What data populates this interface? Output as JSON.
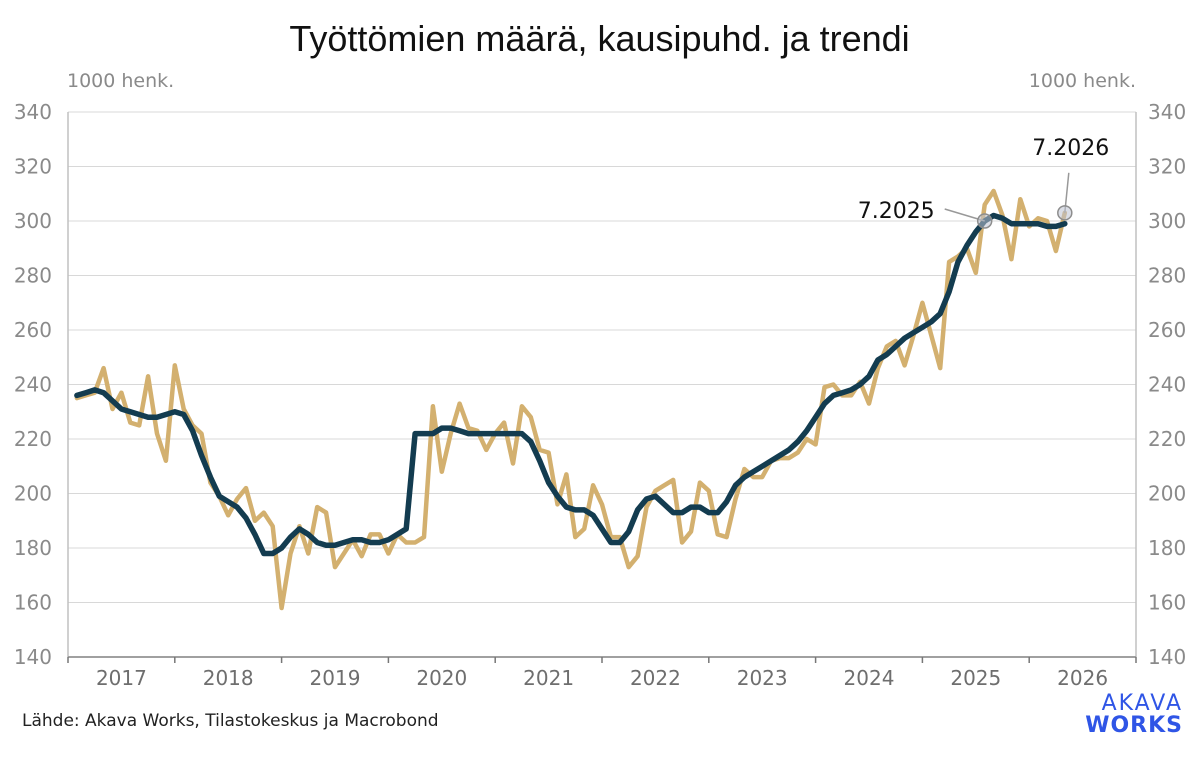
{
  "colors": {
    "seasonal": "#d3b06f",
    "trend": "#133c50",
    "grid": "#d8d8d8",
    "axis": "#8a8a8a",
    "logo": "#2f55e6"
  },
  "logo": {
    "line1": "AKAVA",
    "line2": "WORKS"
  },
  "source": "Lähde: Akava Works, Tilastokeskus ja Macrobond",
  "chart_data": {
    "type": "line",
    "title": "Työttömien määrä, kausipuhd. ja trendi",
    "ylabel_left": "1000 henk.",
    "ylabel_right": "1000 henk.",
    "ylim": [
      140,
      340
    ],
    "yticks": [
      "140",
      "160",
      "180",
      "200",
      "220",
      "240",
      "260",
      "280",
      "300",
      "320",
      "340"
    ],
    "xticks": [
      "2017",
      "2018",
      "2019",
      "2020",
      "2021",
      "2022",
      "2023",
      "2024",
      "2025",
      "2026"
    ],
    "grid": true,
    "x_start_year": 2017,
    "series": [
      {
        "role": "seasonal",
        "values": [
          235,
          236,
          237,
          246,
          231,
          237,
          226,
          225,
          243,
          222,
          212,
          247,
          231,
          225,
          222,
          204,
          199,
          192,
          198,
          202,
          190,
          193,
          188,
          158,
          178,
          188,
          178,
          195,
          193,
          173,
          178,
          183,
          177,
          185,
          185,
          178,
          185,
          182,
          182,
          184,
          232,
          208,
          222,
          233,
          224,
          223,
          216,
          222,
          226,
          211,
          232,
          228,
          216,
          215,
          196,
          207,
          184,
          187,
          203,
          196,
          184,
          184,
          173,
          177,
          195,
          201,
          203,
          205,
          182,
          186,
          204,
          201,
          185,
          184,
          198,
          209,
          206,
          206,
          212,
          213,
          213,
          215,
          220,
          218,
          239,
          240,
          236,
          236,
          241,
          233,
          246,
          254,
          256,
          247,
          258,
          270,
          258,
          246,
          285,
          287,
          290,
          281,
          306,
          311,
          302,
          286,
          308,
          298,
          301,
          300,
          289,
          303
        ]
      },
      {
        "role": "trend",
        "values": [
          236,
          237,
          238,
          237,
          234,
          231,
          230,
          229,
          228,
          228,
          229,
          230,
          229,
          223,
          214,
          206,
          199,
          197,
          195,
          191,
          185,
          178,
          178,
          180,
          184,
          187,
          185,
          182,
          181,
          181,
          182,
          183,
          183,
          182,
          182,
          183,
          185,
          187,
          222,
          222,
          222,
          224,
          224,
          223,
          222,
          222,
          222,
          222,
          222,
          222,
          222,
          219,
          212,
          204,
          199,
          195,
          194,
          194,
          192,
          187,
          182,
          182,
          186,
          194,
          198,
          199,
          196,
          193,
          193,
          195,
          195,
          193,
          193,
          197,
          203,
          206,
          208,
          210,
          212,
          214,
          216,
          219,
          223,
          228,
          233,
          236,
          237,
          238,
          240,
          243,
          249,
          251,
          254,
          257,
          259,
          261,
          263,
          266,
          274,
          285,
          291,
          296,
          300,
          302,
          301,
          299,
          299,
          299,
          299,
          298,
          298,
          299
        ]
      }
    ],
    "annotations": [
      {
        "label": "7.2025",
        "index": 102,
        "series": "trend"
      },
      {
        "label": "7.2026",
        "index": 114,
        "series": "seasonal"
      }
    ]
  }
}
